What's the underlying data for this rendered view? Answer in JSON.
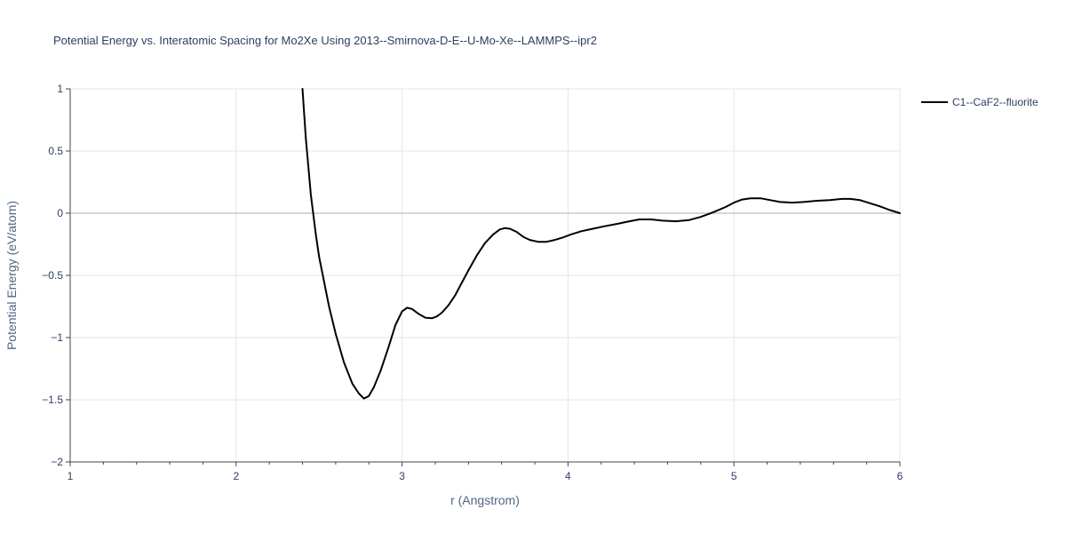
{
  "chart_data": {
    "type": "line",
    "title": "Potential Energy vs. Interatomic Spacing for Mo2Xe Using 2013--Smirnova-D-E--U-Mo-Xe--LAMMPS--ipr2",
    "xlabel": "r (Angstrom)",
    "ylabel": "Potential Energy (eV/atom)",
    "xlim": [
      1,
      6
    ],
    "ylim": [
      -2,
      1
    ],
    "xticks": [
      1,
      2,
      3,
      4,
      5,
      6
    ],
    "xtick_labels": [
      "1",
      "2",
      "3",
      "4",
      "5",
      "6"
    ],
    "yticks": [
      1,
      0.5,
      0,
      -0.5,
      -1,
      -1.5,
      -2
    ],
    "ytick_labels": [
      "1",
      "0.5",
      "0",
      "−0.5",
      "−1",
      "−1.5",
      "−2"
    ],
    "grid": true,
    "legend_position": "top-right",
    "series": [
      {
        "name": "C1--CaF2--fluorite",
        "color": "#000000",
        "x": [
          2.4,
          2.42,
          2.45,
          2.48,
          2.5,
          2.53,
          2.56,
          2.6,
          2.65,
          2.7,
          2.74,
          2.77,
          2.8,
          2.83,
          2.87,
          2.92,
          2.96,
          3.0,
          3.03,
          3.06,
          3.1,
          3.14,
          3.18,
          3.21,
          3.24,
          3.28,
          3.32,
          3.36,
          3.4,
          3.45,
          3.5,
          3.55,
          3.59,
          3.62,
          3.65,
          3.69,
          3.73,
          3.77,
          3.82,
          3.87,
          3.92,
          3.97,
          4.02,
          4.08,
          4.15,
          4.22,
          4.3,
          4.37,
          4.43,
          4.5,
          4.57,
          4.65,
          4.73,
          4.8,
          4.87,
          4.95,
          5.0,
          5.05,
          5.1,
          5.16,
          5.22,
          5.28,
          5.35,
          5.42,
          5.5,
          5.58,
          5.65,
          5.7,
          5.76,
          5.82,
          5.88,
          5.94,
          6.0
        ],
        "y": [
          1.0,
          0.6,
          0.15,
          -0.17,
          -0.35,
          -0.55,
          -0.75,
          -0.97,
          -1.2,
          -1.37,
          -1.45,
          -1.49,
          -1.47,
          -1.4,
          -1.27,
          -1.07,
          -0.9,
          -0.79,
          -0.76,
          -0.77,
          -0.81,
          -0.84,
          -0.845,
          -0.83,
          -0.8,
          -0.74,
          -0.66,
          -0.56,
          -0.46,
          -0.34,
          -0.24,
          -0.17,
          -0.13,
          -0.12,
          -0.125,
          -0.15,
          -0.19,
          -0.215,
          -0.23,
          -0.23,
          -0.215,
          -0.195,
          -0.17,
          -0.145,
          -0.125,
          -0.105,
          -0.085,
          -0.065,
          -0.05,
          -0.05,
          -0.06,
          -0.065,
          -0.055,
          -0.03,
          0.005,
          0.05,
          0.085,
          0.11,
          0.12,
          0.12,
          0.105,
          0.09,
          0.085,
          0.09,
          0.1,
          0.105,
          0.115,
          0.115,
          0.105,
          0.08,
          0.055,
          0.025,
          0.0
        ]
      }
    ]
  }
}
